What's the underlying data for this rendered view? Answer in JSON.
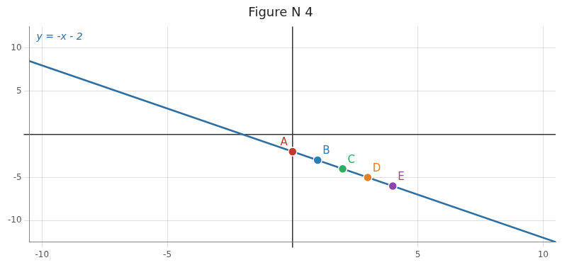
{
  "chart_data": {
    "type": "scatter",
    "title": "Figure N 4",
    "annotations": [
      "y = -x - 2"
    ],
    "xlim": [
      -10.5,
      10.5
    ],
    "xticks": [
      -10,
      -5,
      {
        "value": 0,
        "label": null
      },
      5,
      10
    ],
    "ylim": [
      -12.5,
      12.5
    ],
    "yticks": [
      -10,
      -5,
      {
        "value": 0,
        "label": null
      },
      5,
      10
    ],
    "grid": true,
    "series": [
      {
        "type": "line",
        "color": "#2d6fa3",
        "x": [
          -10.5,
          10.5
        ],
        "values": [
          8.5,
          -12.5
        ]
      },
      {
        "type": "scatter",
        "x": [
          0,
          1,
          2,
          3,
          4
        ],
        "values": [
          -2,
          -3,
          -4,
          -5,
          -6
        ],
        "labels": [
          "A",
          "B",
          "C",
          "D",
          "E"
        ],
        "colors": [
          "#c0392b",
          "#2980b9",
          "#27ae60",
          "#e67e22",
          "#8e44ad"
        ]
      }
    ]
  }
}
